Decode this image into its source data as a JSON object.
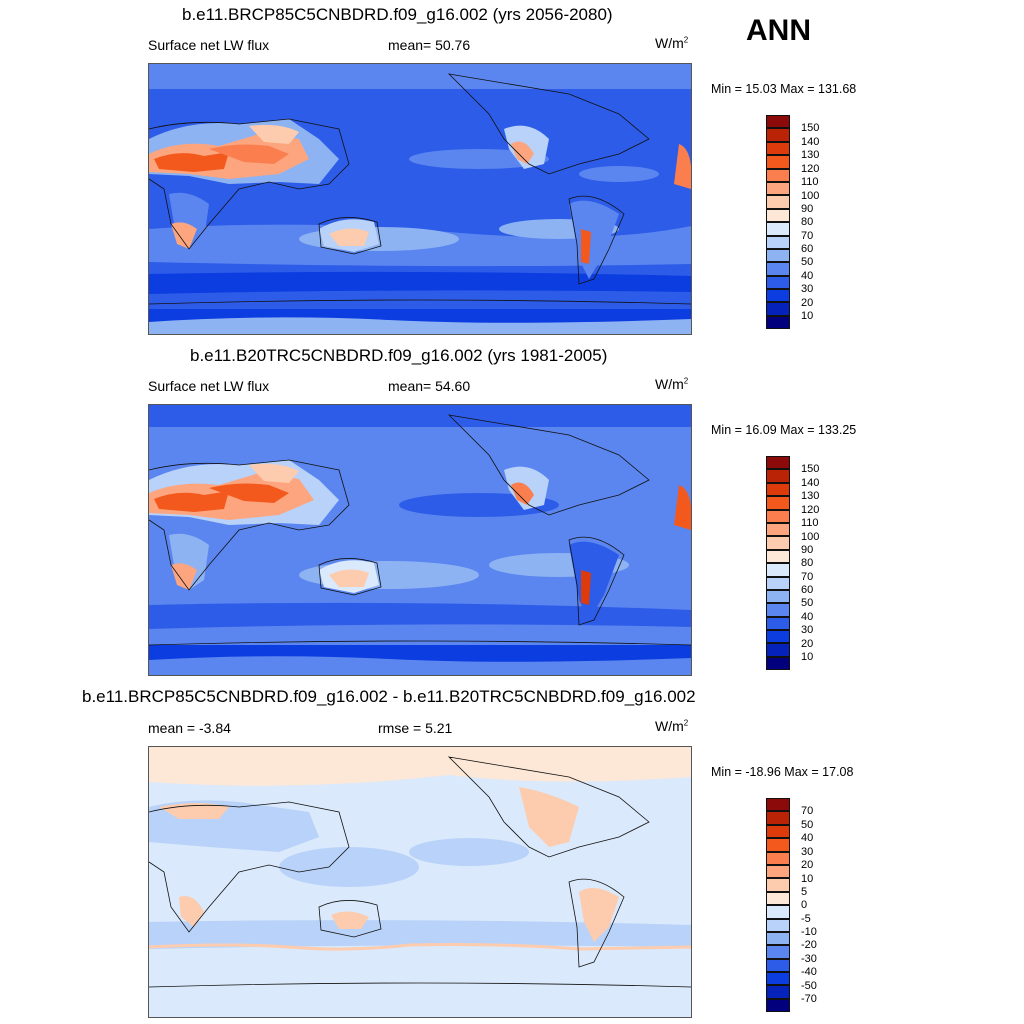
{
  "season": "ANN",
  "panels": [
    {
      "title": "b.e11.BRCP85C5CNBDRD.f09_g16.002 (yrs 2056-2080)",
      "left_label": "Surface net LW flux",
      "center_label": "mean=  50.76",
      "units_base": "W/m",
      "units_exp": "2",
      "minmax": "Min =  15.03 Max = 131.68",
      "colorbar_labels": [
        "150",
        "140",
        "130",
        "120",
        "110",
        "100",
        "90",
        "80",
        "70",
        "60",
        "50",
        "40",
        "30",
        "20",
        "10"
      ],
      "colorbar_colors": [
        "#8c0a0a",
        "#bb2307",
        "#dd3b0b",
        "#f3591d",
        "#fb7f4e",
        "#fca57f",
        "#fdccae",
        "#fde8d7",
        "#dae9fb",
        "#b8d2f9",
        "#8eb3f3",
        "#5b86ef",
        "#2d5ce8",
        "#0c3de0",
        "#0523bb",
        "#03007e"
      ]
    },
    {
      "title": "b.e11.B20TRC5CNBDRD.f09_g16.002 (yrs 1981-2005)",
      "left_label": "Surface net LW flux",
      "center_label": "mean=  54.60",
      "units_base": "W/m",
      "units_exp": "2",
      "minmax": "Min =  16.09 Max = 133.25",
      "colorbar_labels": [
        "150",
        "140",
        "130",
        "120",
        "110",
        "100",
        "90",
        "80",
        "70",
        "60",
        "50",
        "40",
        "30",
        "20",
        "10"
      ],
      "colorbar_colors": [
        "#8c0a0a",
        "#bb2307",
        "#dd3b0b",
        "#f3591d",
        "#fb7f4e",
        "#fca57f",
        "#fdccae",
        "#fde8d7",
        "#dae9fb",
        "#b8d2f9",
        "#8eb3f3",
        "#5b86ef",
        "#2d5ce8",
        "#0c3de0",
        "#0523bb",
        "#03007e"
      ]
    },
    {
      "title": "b.e11.BRCP85C5CNBDRD.f09_g16.002 - b.e11.B20TRC5CNBDRD.f09_g16.002",
      "left_label": "mean =  -3.84",
      "center_label": "rmse =   5.21",
      "units_base": "W/m",
      "units_exp": "2",
      "minmax": "Min = -18.96 Max =  17.08",
      "colorbar_labels": [
        "70",
        "50",
        "40",
        "30",
        "20",
        "10",
        "5",
        "0",
        "-5",
        "-10",
        "-20",
        "-30",
        "-40",
        "-50",
        "-70"
      ],
      "colorbar_colors": [
        "#8c0a0a",
        "#bb2307",
        "#dd3b0b",
        "#f3591d",
        "#fb7f4e",
        "#fca57f",
        "#fdccae",
        "#fde8d7",
        "#dae9fb",
        "#b8d2f9",
        "#8eb3f3",
        "#5b86ef",
        "#2d5ce8",
        "#0c3de0",
        "#0523bb",
        "#03007e"
      ]
    }
  ]
}
